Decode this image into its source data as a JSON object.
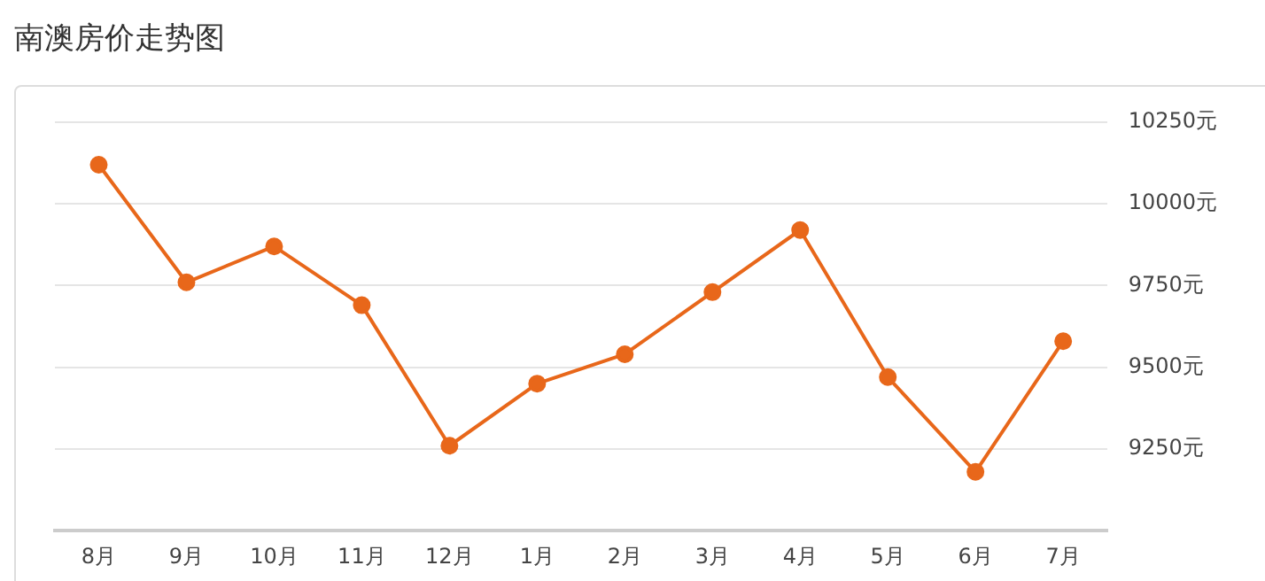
{
  "chart_data": {
    "type": "line",
    "title": "南澳房价走势图",
    "categories": [
      "8月",
      "9月",
      "10月",
      "11月",
      "12月",
      "1月",
      "2月",
      "3月",
      "4月",
      "5月",
      "6月",
      "7月"
    ],
    "series": [
      {
        "color": "#e8671a",
        "values": [
          10120,
          9760,
          9870,
          9690,
          9260,
          9450,
          9540,
          9730,
          9920,
          9470,
          9180,
          9580
        ]
      }
    ],
    "ylim": [
      9000,
      10250
    ],
    "yticks": [
      {
        "value": 9000,
        "label": null
      },
      {
        "value": 9250,
        "label": "9250元"
      },
      {
        "value": 9500,
        "label": "9500元"
      },
      {
        "value": 9750,
        "label": "9750元"
      },
      {
        "value": 10000,
        "label": "10000元"
      },
      {
        "value": 10250,
        "label": "10250元"
      }
    ],
    "grid": "y",
    "legend": false,
    "marker": "circle",
    "line_style": "solid"
  }
}
